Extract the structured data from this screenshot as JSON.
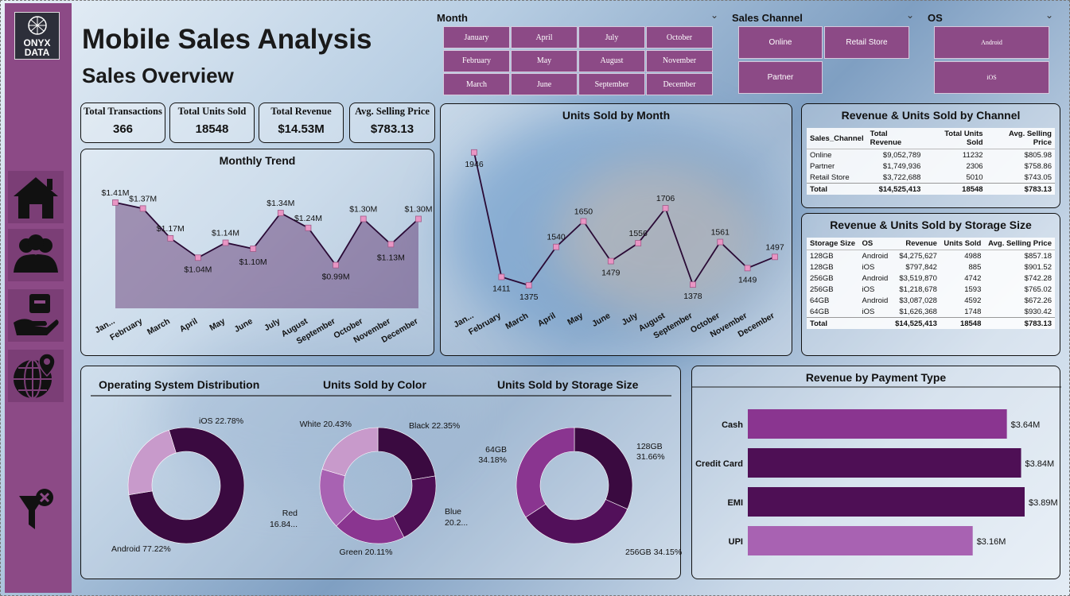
{
  "header": {
    "title": "Mobile Sales Analysis",
    "subtitle": "Sales Overview"
  },
  "logo": {
    "line1": "ONYX",
    "line2": "DATA"
  },
  "nav": [
    {
      "icon": "home-icon"
    },
    {
      "icon": "users-icon"
    },
    {
      "icon": "hand-box-icon"
    },
    {
      "icon": "globe-pin-icon"
    },
    {
      "icon": "clear-filter-icon"
    }
  ],
  "slicers": {
    "month": {
      "title": "Month",
      "options": [
        "January",
        "April",
        "July",
        "October",
        "February",
        "May",
        "August",
        "November",
        "March",
        "June",
        "September",
        "December"
      ]
    },
    "channel": {
      "title": "Sales Channel",
      "options": [
        "Online",
        "Retail Store",
        "Partner"
      ]
    },
    "os": {
      "title": "OS",
      "options": [
        "Android",
        "iOS"
      ]
    }
  },
  "kpis": [
    {
      "label": "Total Transactions",
      "value": "366"
    },
    {
      "label": "Total Units Sold",
      "value": "18548"
    },
    {
      "label": "Total Revenue",
      "value": "$14.53M"
    },
    {
      "label": "Avg. Selling Price",
      "value": "$783.13"
    }
  ],
  "channel_table": {
    "title": "Revenue & Units Sold by Channel",
    "headers": [
      "Sales_Channel",
      "Total Revenue",
      "Total Units Sold",
      "Avg. Selling Price"
    ],
    "rows": [
      [
        "Online",
        "$9,052,789",
        "11232",
        "$805.98"
      ],
      [
        "Partner",
        "$1,749,936",
        "2306",
        "$758.86"
      ],
      [
        "Retail Store",
        "$3,722,688",
        "5010",
        "$743.05"
      ],
      [
        "Total",
        "$14,525,413",
        "18548",
        "$783.13"
      ]
    ]
  },
  "storage_table": {
    "title": "Revenue & Units Sold by Storage Size",
    "headers": [
      "Storage Size",
      "OS",
      "Revenue",
      "Units Sold",
      "Avg. Selling Price"
    ],
    "rows": [
      [
        "128GB",
        "Android",
        "$4,275,627",
        "4988",
        "$857.18"
      ],
      [
        "128GB",
        "iOS",
        "$797,842",
        "885",
        "$901.52"
      ],
      [
        "256GB",
        "Android",
        "$3,519,870",
        "4742",
        "$742.28"
      ],
      [
        "256GB",
        "iOS",
        "$1,218,678",
        "1593",
        "$765.02"
      ],
      [
        "64GB",
        "Android",
        "$3,087,028",
        "4592",
        "$672.26"
      ],
      [
        "64GB",
        "iOS",
        "$1,626,368",
        "1748",
        "$930.42"
      ],
      [
        "Total",
        "",
        "$14,525,413",
        "18548",
        "$783.13"
      ]
    ]
  },
  "chart_data": [
    {
      "type": "area",
      "title": "Monthly Trend",
      "categories": [
        "Jan...",
        "February",
        "March",
        "April",
        "May",
        "June",
        "July",
        "August",
        "September",
        "October",
        "November",
        "December"
      ],
      "values": [
        1.41,
        1.37,
        1.17,
        1.04,
        1.14,
        1.1,
        1.34,
        1.24,
        0.99,
        1.3,
        1.13,
        1.3
      ],
      "labels": [
        "$1.41M",
        "$1.37M",
        "$1.17M",
        "$1.04M",
        "$1.14M",
        "$1.10M",
        "$1.34M",
        "$1.24M",
        "$0.99M",
        "$1.30M",
        "$1.13M",
        "$1.30M"
      ],
      "ylim": [
        0.7,
        1.5
      ]
    },
    {
      "type": "line",
      "title": "Units Sold by Month",
      "categories": [
        "Jan...",
        "February",
        "March",
        "April",
        "May",
        "June",
        "July",
        "August",
        "September",
        "October",
        "November",
        "December"
      ],
      "values": [
        1946,
        1411,
        1375,
        1540,
        1650,
        1479,
        1556,
        1706,
        1378,
        1561,
        1449,
        1497
      ],
      "ylim": [
        1300,
        2000
      ]
    },
    {
      "type": "pie",
      "title": "Operating System Distribution",
      "categories": [
        "Android",
        "iOS"
      ],
      "values": [
        77.22,
        22.78
      ],
      "labels": [
        "Android 77.22%",
        "iOS 22.78%"
      ]
    },
    {
      "type": "pie",
      "title": "Units Sold by Color",
      "categories": [
        "Black",
        "Blue",
        "Green",
        "Red",
        "White"
      ],
      "values": [
        22.35,
        20.2,
        20.11,
        16.84,
        20.43
      ],
      "labels": [
        "Black 22.35%",
        "Blue 20.2...",
        "Green 20.11%",
        "Red 16.84...",
        "White 20.43%"
      ]
    },
    {
      "type": "pie",
      "title": "Units Sold by Storage Size",
      "categories": [
        "128GB",
        "256GB",
        "64GB"
      ],
      "values": [
        31.66,
        34.15,
        34.18
      ],
      "labels": [
        "128GB 31.66%",
        "256GB 34.15%",
        "64GB 34.18%"
      ]
    },
    {
      "type": "bar",
      "title": "Revenue by Payment Type",
      "categories": [
        "Cash",
        "Credit Card",
        "EMI",
        "UPI"
      ],
      "values": [
        3.64,
        3.84,
        3.89,
        3.16
      ],
      "labels": [
        "$3.64M",
        "$3.84M",
        "$3.89M",
        "$3.16M"
      ],
      "colors": [
        "#8a3590",
        "#4e0f55",
        "#4e0f55",
        "#a862b2"
      ]
    }
  ],
  "colors": {
    "accent": "#8c4a86",
    "dark": "#3a0a40",
    "line": "#2a0a35",
    "marker": "#e995c4"
  }
}
